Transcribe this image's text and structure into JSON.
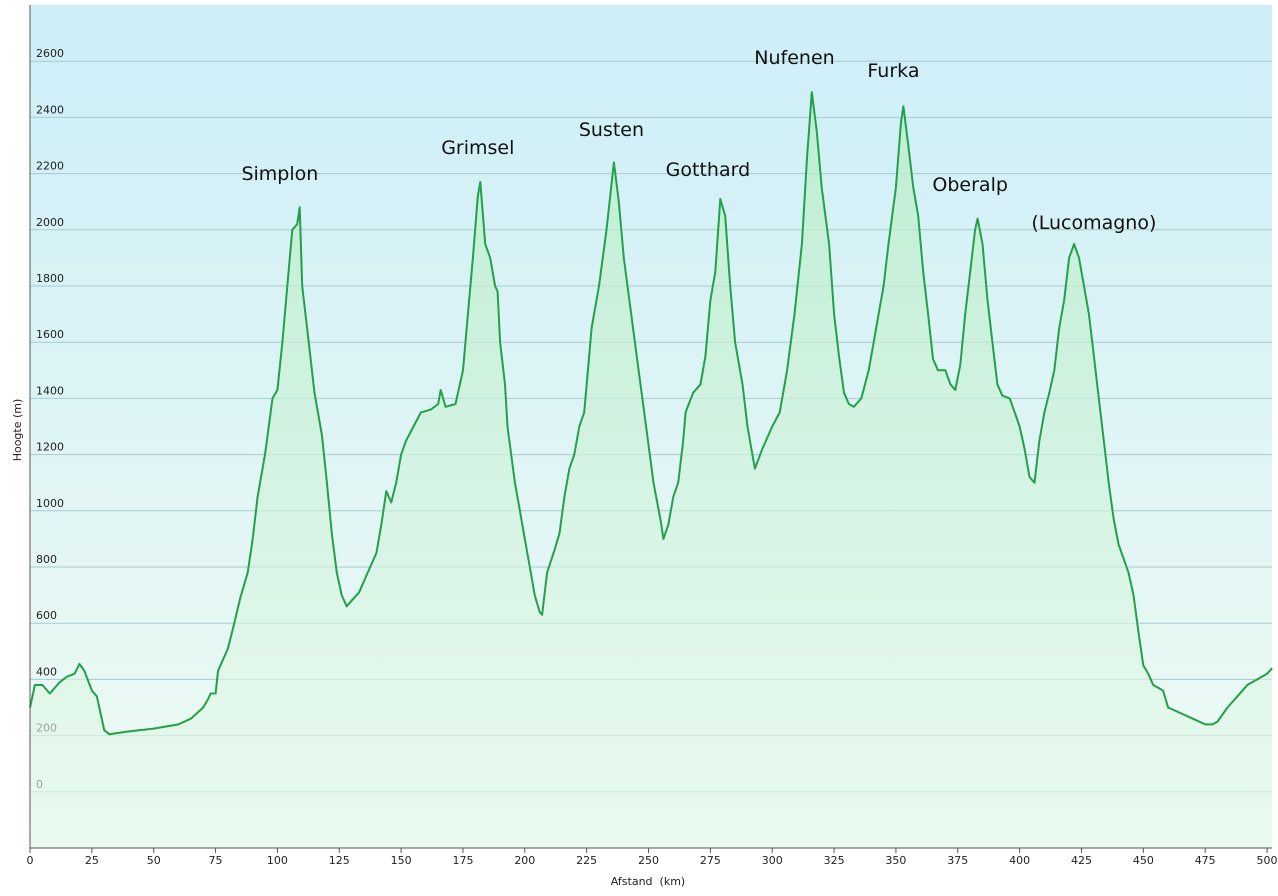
{
  "chart_data": {
    "type": "area",
    "xlabel": "Afstand  (km)",
    "ylabel": "Hoogte (m)",
    "color": "#22a04a",
    "grid": true,
    "xlim": [
      0,
      502
    ],
    "ylim": [
      -200,
      2800
    ],
    "xticks": [
      0,
      25,
      50,
      75,
      100,
      125,
      150,
      175,
      200,
      225,
      250,
      275,
      300,
      325,
      350,
      375,
      400,
      425,
      450,
      475,
      500
    ],
    "yticks": [
      0,
      200,
      400,
      600,
      800,
      1000,
      1200,
      1400,
      1600,
      1800,
      2000,
      2200,
      2400,
      2600
    ],
    "x": [
      0,
      2,
      5,
      8,
      12,
      15,
      18,
      20,
      22,
      25,
      27,
      28,
      30,
      32,
      40,
      50,
      60,
      65,
      70,
      72,
      73,
      75,
      76,
      80,
      82,
      85,
      88,
      90,
      92,
      95,
      98,
      100,
      102,
      104,
      106,
      108,
      109,
      110,
      112,
      115,
      118,
      120,
      122,
      124,
      126,
      128,
      130,
      133,
      136,
      140,
      142,
      144,
      146,
      148,
      150,
      152,
      155,
      158,
      162,
      165,
      166,
      168,
      172,
      175,
      177,
      179,
      181,
      182,
      184,
      186,
      188,
      189,
      190,
      192,
      193,
      196,
      198,
      200,
      202,
      204,
      206,
      207,
      209,
      212,
      214,
      216,
      218,
      220,
      222,
      224,
      225,
      227,
      230,
      233,
      236,
      238,
      240,
      243,
      246,
      249,
      252,
      255,
      256,
      258,
      260,
      262,
      264,
      265,
      268,
      271,
      273,
      275,
      277,
      279,
      281,
      283,
      285,
      288,
      290,
      292,
      293,
      296,
      300,
      303,
      306,
      309,
      312,
      314,
      316,
      318,
      320,
      323,
      325,
      327,
      329,
      331,
      333,
      336,
      339,
      341,
      343,
      345,
      347,
      350,
      352,
      353,
      355,
      357,
      359,
      361,
      363,
      365,
      367,
      370,
      372,
      374,
      376,
      378,
      380,
      382,
      383,
      385,
      387,
      389,
      391,
      393,
      396,
      398,
      400,
      402,
      404,
      406,
      408,
      410,
      412,
      414,
      416,
      418,
      420,
      422,
      424,
      426,
      428,
      430,
      432,
      434,
      436,
      438,
      440,
      442,
      444,
      446,
      448,
      450,
      452,
      454,
      456,
      458,
      460,
      465,
      470,
      475,
      478,
      480,
      484,
      488,
      492,
      496,
      500,
      502
    ],
    "values": [
      300,
      380,
      380,
      350,
      390,
      410,
      420,
      455,
      430,
      360,
      340,
      300,
      220,
      205,
      215,
      225,
      240,
      260,
      300,
      330,
      350,
      350,
      430,
      510,
      580,
      690,
      780,
      900,
      1050,
      1200,
      1400,
      1430,
      1600,
      1800,
      2000,
      2020,
      2080,
      1800,
      1650,
      1420,
      1270,
      1100,
      920,
      780,
      700,
      660,
      680,
      710,
      770,
      850,
      950,
      1070,
      1030,
      1100,
      1200,
      1250,
      1300,
      1350,
      1360,
      1380,
      1430,
      1370,
      1380,
      1500,
      1700,
      1900,
      2120,
      2170,
      1950,
      1900,
      1800,
      1780,
      1600,
      1450,
      1300,
      1100,
      1000,
      900,
      800,
      700,
      640,
      630,
      780,
      860,
      920,
      1050,
      1150,
      1200,
      1300,
      1350,
      1450,
      1650,
      1800,
      2000,
      2240,
      2100,
      1900,
      1700,
      1500,
      1300,
      1100,
      960,
      900,
      950,
      1050,
      1100,
      1250,
      1350,
      1420,
      1450,
      1550,
      1750,
      1850,
      2110,
      2050,
      1800,
      1600,
      1450,
      1300,
      1200,
      1150,
      1220,
      1300,
      1350,
      1500,
      1700,
      1950,
      2250,
      2490,
      2350,
      2150,
      1950,
      1700,
      1550,
      1420,
      1380,
      1370,
      1400,
      1500,
      1600,
      1700,
      1800,
      1950,
      2150,
      2380,
      2440,
      2300,
      2150,
      2050,
      1850,
      1700,
      1540,
      1500,
      1500,
      1450,
      1430,
      1520,
      1700,
      1850,
      2000,
      2040,
      1950,
      1750,
      1600,
      1450,
      1410,
      1400,
      1350,
      1300,
      1220,
      1120,
      1100,
      1250,
      1350,
      1420,
      1500,
      1650,
      1750,
      1900,
      1950,
      1900,
      1800,
      1700,
      1550,
      1400,
      1250,
      1100,
      970,
      880,
      830,
      780,
      700,
      570,
      450,
      420,
      380,
      370,
      360,
      300,
      280,
      260,
      240,
      240,
      250,
      300,
      340,
      380,
      400,
      420,
      440
    ],
    "annotations": [
      {
        "text": "Simplon",
        "x": 101,
        "y": 2197
      },
      {
        "text": "Grimsel",
        "x": 181,
        "y": 2290
      },
      {
        "text": "Susten",
        "x": 235,
        "y": 2354
      },
      {
        "text": "Gotthard",
        "x": 274,
        "y": 2211
      },
      {
        "text": "Nufenen",
        "x": 309,
        "y": 2610
      },
      {
        "text": "Furka",
        "x": 349,
        "y": 2564
      },
      {
        "text": "Oberalp",
        "x": 380,
        "y": 2158
      },
      {
        "text": "(Lucomagno)",
        "x": 430,
        "y": 2022
      }
    ]
  }
}
